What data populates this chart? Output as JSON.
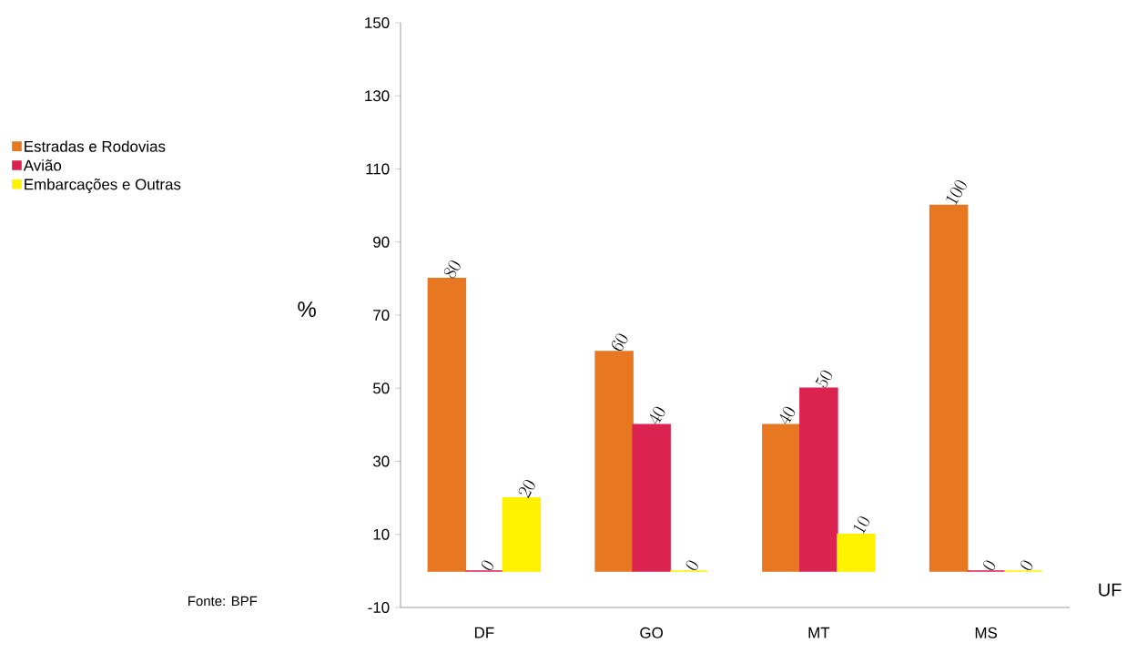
{
  "chart_data": {
    "type": "bar",
    "categories": [
      "DF",
      "GO",
      "MT",
      "MS"
    ],
    "series": [
      {
        "name": "Estradas e Rodovias",
        "color": "#e87722",
        "values": [
          80,
          60,
          40,
          100
        ]
      },
      {
        "name": "Avião",
        "color": "#dc2350",
        "values": [
          0,
          40,
          50,
          0
        ]
      },
      {
        "name": "Embarcações e Outras",
        "color": "#fff200",
        "values": [
          20,
          0,
          10,
          0
        ]
      }
    ],
    "ylim": [
      -10,
      150
    ],
    "yticks": [
      -10,
      10,
      30,
      50,
      70,
      90,
      110,
      130,
      150
    ],
    "xlabel": "UF",
    "ylabel": "%",
    "legend": "left",
    "data_labels": true,
    "annotations": [
      "Fonte: BPF"
    ]
  }
}
